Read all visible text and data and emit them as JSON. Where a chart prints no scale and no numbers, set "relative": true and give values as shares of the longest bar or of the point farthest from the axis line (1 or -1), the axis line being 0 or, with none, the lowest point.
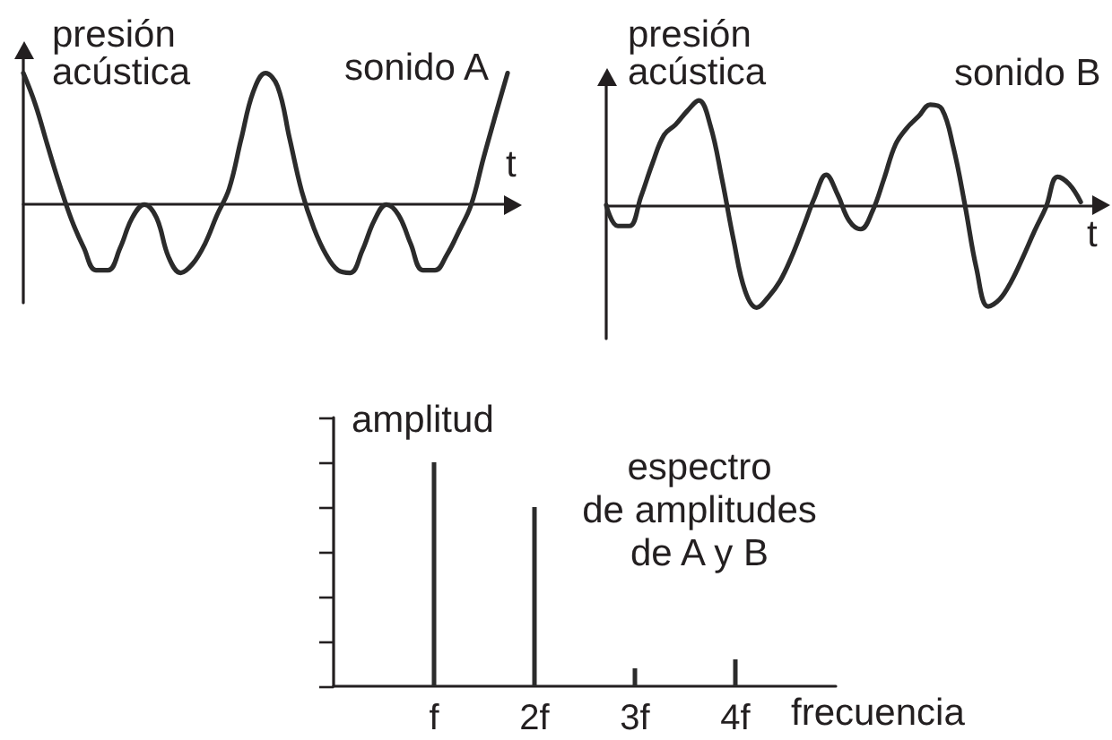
{
  "chart_data": [
    {
      "type": "line",
      "title": "sonido A",
      "xlabel": "t",
      "ylabel": "presión acústica",
      "relative": true,
      "marker": "none",
      "categories": [
        null,
        null,
        null,
        null,
        null,
        null,
        null,
        null,
        null,
        null,
        null,
        null,
        null,
        null,
        null,
        null,
        null,
        null,
        null,
        null,
        null,
        null,
        null,
        null,
        null,
        null,
        null,
        null,
        null,
        null,
        null,
        null,
        null,
        null,
        null,
        null,
        null,
        null,
        null,
        null,
        null
      ],
      "values": [
        1.0,
        0.76,
        0.45,
        0.15,
        -0.12,
        -0.33,
        -0.5,
        -0.5,
        -0.33,
        -0.1,
        0.0,
        -0.1,
        -0.4,
        -0.52,
        -0.45,
        -0.3,
        -0.08,
        0.12,
        0.5,
        0.86,
        1.0,
        0.9,
        0.5,
        0.1,
        -0.18,
        -0.38,
        -0.5,
        -0.52,
        -0.35,
        -0.12,
        0.0,
        -0.08,
        -0.3,
        -0.5,
        -0.5,
        -0.38,
        -0.2,
        0.0,
        0.35,
        0.68,
        1.0
      ],
      "color": "#2b2b2b"
    },
    {
      "type": "line",
      "title": "sonido B",
      "xlabel": "t",
      "ylabel": "presión acústica",
      "relative": true,
      "marker": "none",
      "categories": [
        null,
        null,
        null,
        null,
        null,
        null,
        null,
        null,
        null,
        null,
        null,
        null,
        null,
        null,
        null,
        null,
        null,
        null,
        null,
        null,
        null,
        null,
        null,
        null,
        null,
        null,
        null,
        null,
        null,
        null,
        null,
        null,
        null,
        null,
        null,
        null,
        null,
        null,
        null,
        null,
        null,
        null
      ],
      "values": [
        0,
        -0.2,
        -0.2,
        0.08,
        0.4,
        0.67,
        0.77,
        0.9,
        1.0,
        0.76,
        0.25,
        -0.33,
        -0.82,
        -0.98,
        -0.88,
        -0.73,
        -0.5,
        -0.22,
        0.07,
        0.29,
        0.1,
        -0.15,
        -0.23,
        -0.06,
        0.25,
        0.58,
        0.74,
        0.85,
        0.96,
        0.92,
        0.55,
        0,
        -0.61,
        -0.97,
        -0.9,
        -0.73,
        -0.5,
        -0.25,
        -0.02,
        0.27,
        0.2,
        0.03
      ],
      "color": "#2b2b2b"
    },
    {
      "type": "bar",
      "title": "espectro\nde amplitudes\nde A y B",
      "xlabel": "frecuencia",
      "ylabel": "amplitud",
      "relative": true,
      "tick_labels": "x",
      "categories": [
        "f",
        "2f",
        "3f",
        "4f"
      ],
      "values": [
        1,
        0.8,
        0.08,
        0.12
      ],
      "color": "#2b2b2b"
    }
  ]
}
